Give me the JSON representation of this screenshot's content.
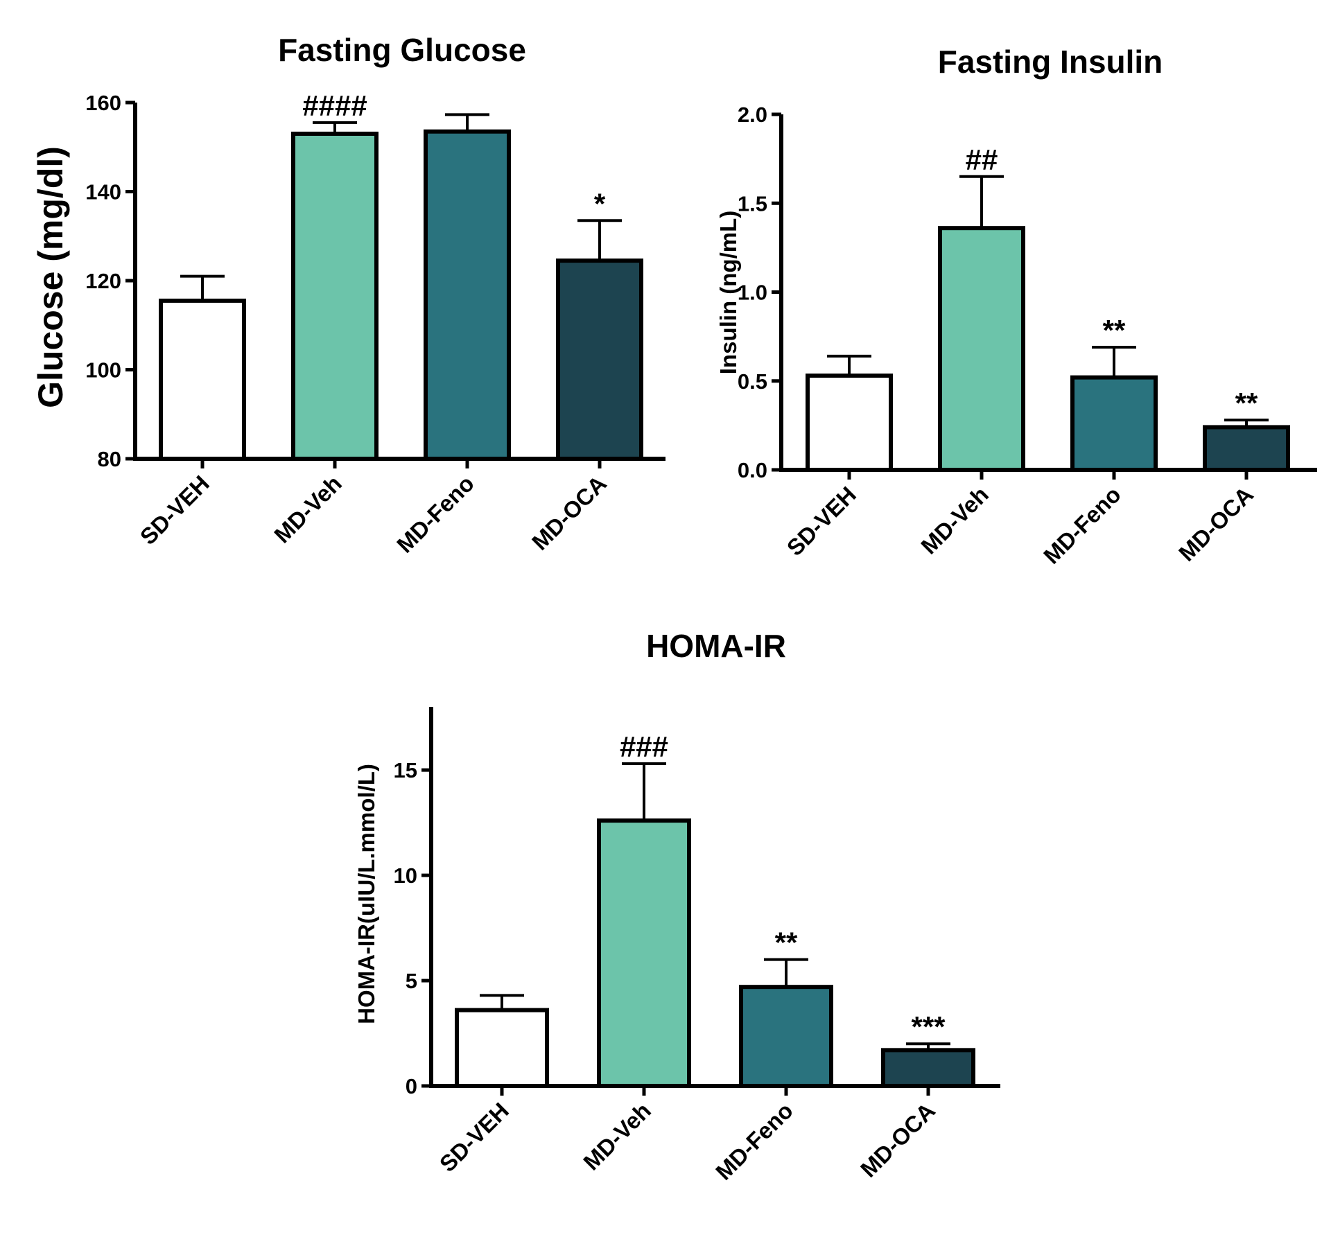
{
  "chart_data": [
    {
      "type": "bar",
      "title": "Fasting Glucose",
      "ylabel": "Glucose (mg/dl)",
      "xlabel": "",
      "categories": [
        "SD-VEH",
        "MD-Veh",
        "MD-Feno",
        "MD-OCA"
      ],
      "values": [
        115.5,
        153,
        153.5,
        124.5
      ],
      "errors": [
        5.5,
        2.5,
        3.8,
        9
      ],
      "significance": [
        "",
        "####",
        "",
        "*"
      ],
      "colors": [
        "#ffffff",
        "#6cc4aa",
        "#2a737e",
        "#1d4450"
      ],
      "ylim": [
        80,
        160
      ],
      "yticks": [
        80,
        100,
        120,
        140,
        160
      ],
      "tick_labels": [
        "80",
        "100",
        "120",
        "140",
        "160"
      ]
    },
    {
      "type": "bar",
      "title": "Fasting Insulin",
      "ylabel": "Insulin (ng/mL)",
      "xlabel": "",
      "categories": [
        "SD-VEH",
        "MD-Veh",
        "MD-Feno",
        "MD-OCA"
      ],
      "values": [
        0.53,
        1.36,
        0.52,
        0.24
      ],
      "errors": [
        0.11,
        0.29,
        0.17,
        0.04
      ],
      "significance": [
        "",
        "##",
        "**",
        "**"
      ],
      "colors": [
        "#ffffff",
        "#6cc4aa",
        "#2a737e",
        "#1d4450"
      ],
      "ylim": [
        0,
        2.0
      ],
      "yticks": [
        0,
        0.5,
        1.0,
        1.5,
        2.0
      ],
      "tick_labels": [
        "0.0",
        "0.5",
        "1.0",
        "1.5",
        "2.0"
      ]
    },
    {
      "type": "bar",
      "title": "HOMA-IR",
      "ylabel": "HOMA-IR(uIU/L.mmol/L)",
      "xlabel": "",
      "categories": [
        "SD-VEH",
        "MD-Veh",
        "MD-Feno",
        "MD-OCA"
      ],
      "values": [
        3.6,
        12.6,
        4.7,
        1.7
      ],
      "errors": [
        0.7,
        2.7,
        1.3,
        0.3
      ],
      "significance": [
        "",
        "###",
        "**",
        "***"
      ],
      "colors": [
        "#ffffff",
        "#6cc4aa",
        "#2a737e",
        "#1d4450"
      ],
      "ylim": [
        0,
        18
      ],
      "yticks": [
        0,
        5,
        10,
        15
      ],
      "tick_labels": [
        "0",
        "5",
        "10",
        "15"
      ]
    }
  ]
}
